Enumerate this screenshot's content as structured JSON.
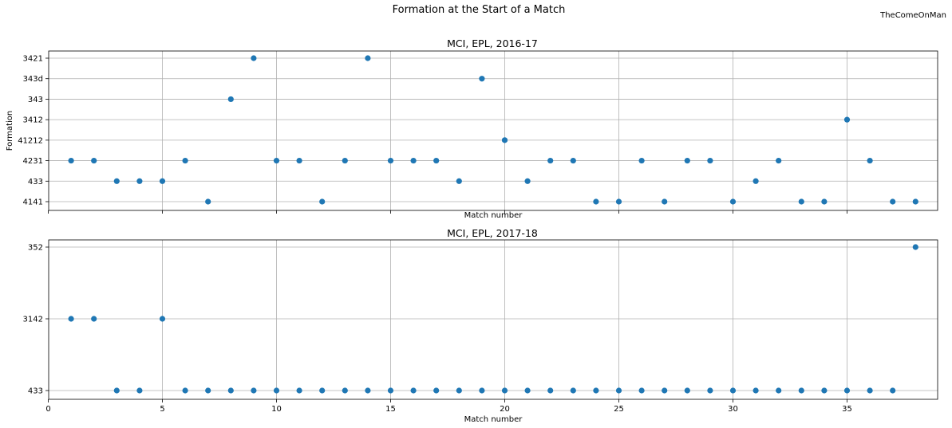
{
  "figure": {
    "suptitle": "Formation at the Start of a Match",
    "credit": "TheComeOnMan"
  },
  "chart_data": [
    {
      "type": "scatter",
      "title": "MCI, EPL, 2016-17",
      "xlabel": "Match number",
      "ylabel": "Formation",
      "categories": [
        "4141",
        "433",
        "4231",
        "41212",
        "3412",
        "343",
        "343d",
        "3421"
      ],
      "x": [
        1,
        2,
        3,
        4,
        5,
        6,
        7,
        8,
        9,
        10,
        11,
        12,
        13,
        14,
        15,
        16,
        17,
        18,
        19,
        20,
        21,
        22,
        23,
        24,
        25,
        26,
        27,
        28,
        29,
        30,
        31,
        32,
        33,
        34,
        35,
        36,
        37,
        38
      ],
      "y": [
        "4231",
        "4231",
        "433",
        "433",
        "433",
        "4231",
        "4141",
        "343",
        "3421",
        "4231",
        "4231",
        "4141",
        "4231",
        "3421",
        "4231",
        "4231",
        "4231",
        "433",
        "343d",
        "41212",
        "433",
        "4231",
        "4231",
        "4141",
        "4141",
        "4231",
        "4141",
        "4231",
        "4231",
        "4141",
        "433",
        "4231",
        "4141",
        "4141",
        "3412",
        "4231",
        "4141",
        "4141"
      ],
      "xticks": [
        5,
        10,
        15,
        20,
        25,
        30,
        35
      ],
      "xticklabels_visible": false,
      "grid": true,
      "color": "#1f77b4"
    },
    {
      "type": "scatter",
      "title": "MCI, EPL, 2017-18",
      "xlabel": "Match number",
      "ylabel": "",
      "categories": [
        "433",
        "3142",
        "352"
      ],
      "x": [
        1,
        2,
        3,
        4,
        5,
        6,
        7,
        8,
        9,
        10,
        11,
        12,
        13,
        14,
        15,
        16,
        17,
        18,
        19,
        20,
        21,
        22,
        23,
        24,
        25,
        26,
        27,
        28,
        29,
        30,
        31,
        32,
        33,
        34,
        35,
        36,
        37,
        38
      ],
      "y": [
        "3142",
        "3142",
        "433",
        "433",
        "3142",
        "433",
        "433",
        "433",
        "433",
        "433",
        "433",
        "433",
        "433",
        "433",
        "433",
        "433",
        "433",
        "433",
        "433",
        "433",
        "433",
        "433",
        "433",
        "433",
        "433",
        "433",
        "433",
        "433",
        "433",
        "433",
        "433",
        "433",
        "433",
        "433",
        "433",
        "433",
        "433",
        "352"
      ],
      "xticks": [
        0,
        5,
        10,
        15,
        20,
        25,
        30,
        35
      ],
      "xticklabels": [
        "0",
        "5",
        "10",
        "15",
        "20",
        "25",
        "30",
        "35"
      ],
      "xticklabels_visible": true,
      "grid": true,
      "color": "#1f77b4"
    }
  ]
}
